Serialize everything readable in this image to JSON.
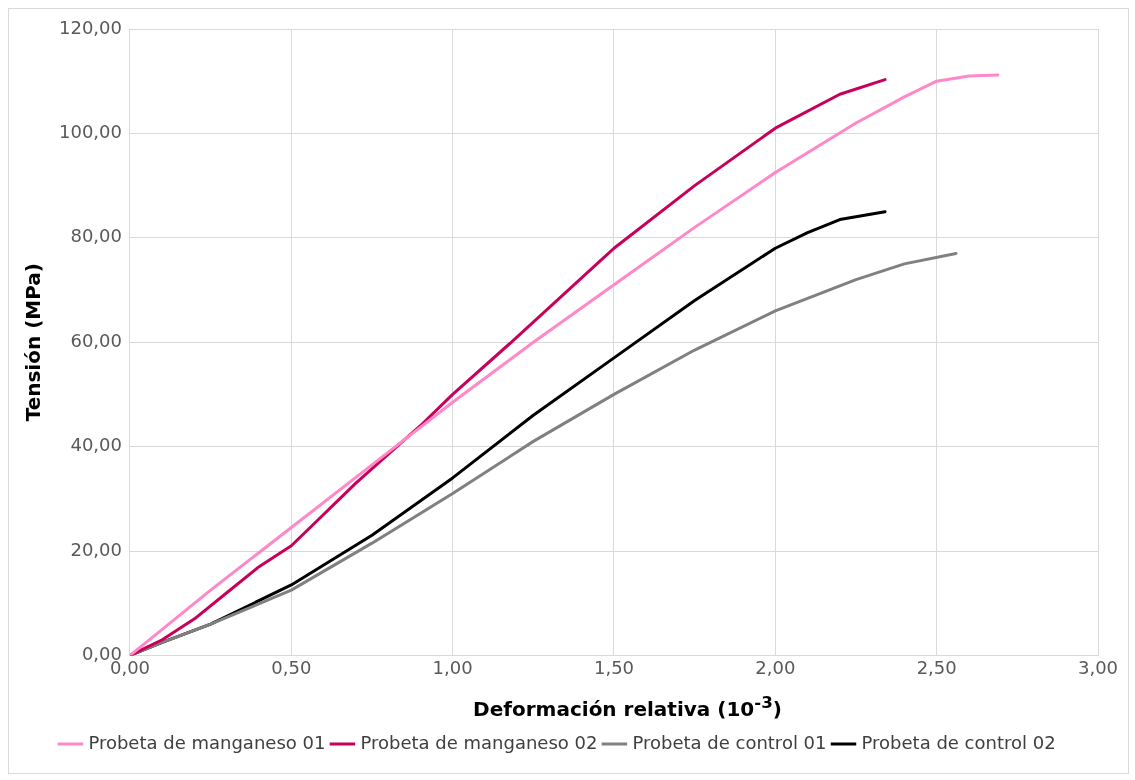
{
  "chart_data": {
    "type": "line",
    "xlabel": "Deformación relativa (10$^{-3}$)",
    "ylabel": "Tensión (MPa)",
    "xlim": [
      0,
      3
    ],
    "xticks": [
      {
        "value": 0,
        "label": "0,00"
      },
      {
        "value": 0.5,
        "label": "0,50"
      },
      {
        "value": 1,
        "label": "1,00"
      },
      {
        "value": 1.5,
        "label": "1,50"
      },
      {
        "value": 2,
        "label": "2,00"
      },
      {
        "value": 2.5,
        "label": "2,50"
      },
      {
        "value": 3,
        "label": "3,00"
      }
    ],
    "ylim": [
      0,
      120
    ],
    "yticks": [
      {
        "value": 0,
        "label": "0,00"
      },
      {
        "value": 20,
        "label": "20,00"
      },
      {
        "value": 40,
        "label": "40,00"
      },
      {
        "value": 60,
        "label": "60,00"
      },
      {
        "value": 80,
        "label": "80,00"
      },
      {
        "value": 100,
        "label": "100,00"
      },
      {
        "value": 120,
        "label": "120,00"
      }
    ],
    "grid": true,
    "legend": "bottom",
    "marker": "none",
    "line_style": "solid",
    "series": [
      {
        "name": "Probeta de manganeso 01",
        "color": "#ff88c8",
        "x": [
          0,
          0.1,
          0.25,
          0.5,
          0.75,
          1,
          1.25,
          1.5,
          1.75,
          2,
          2.25,
          2.4,
          2.5,
          2.6,
          2.69
        ],
        "values": [
          0,
          5,
          12.5,
          24.5,
          36.5,
          48.5,
          60,
          71,
          82,
          92.5,
          102,
          107,
          110,
          111,
          111.2
        ]
      },
      {
        "name": "Probeta de manganeso 02",
        "color": "#c8005a",
        "x": [
          0,
          0.1,
          0.2,
          0.3,
          0.4,
          0.5,
          0.6,
          0.7,
          0.8,
          0.9,
          1,
          1.2,
          1.5,
          1.75,
          2,
          2.2,
          2.34
        ],
        "values": [
          0,
          3,
          7,
          12,
          17,
          21,
          27,
          33,
          38.5,
          44,
          50,
          61,
          78,
          90,
          101,
          107.5,
          110.3
        ]
      },
      {
        "name": "Probeta de control 01",
        "color": "#808080",
        "x": [
          0,
          0.1,
          0.25,
          0.5,
          0.75,
          1,
          1.25,
          1.5,
          1.75,
          2,
          2.25,
          2.4,
          2.56
        ],
        "values": [
          0,
          2.5,
          6,
          12.5,
          21.5,
          31,
          41,
          50,
          58.5,
          66,
          72,
          75,
          77
        ]
      },
      {
        "name": "Probeta de control 02",
        "color": "#000000",
        "x": [
          0,
          0.1,
          0.25,
          0.5,
          0.75,
          1,
          1.25,
          1.5,
          1.75,
          2,
          2.1,
          2.2,
          2.34
        ],
        "values": [
          0,
          2.5,
          6,
          13.5,
          23,
          34,
          46,
          57,
          68,
          78,
          81,
          83.5,
          85
        ]
      }
    ]
  }
}
